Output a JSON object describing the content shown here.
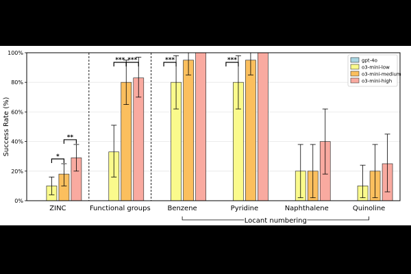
{
  "chart_data": {
    "type": "bar",
    "ylabel": "Success Rate (%)",
    "ylim": [
      0,
      100
    ],
    "yticks": [
      "0%",
      "20%",
      "40%",
      "60%",
      "80%",
      "100%"
    ],
    "grid": "y",
    "legend_position": "top-right",
    "categories": [
      "ZINC",
      "Functional groups",
      "Benzene",
      "Pyridine",
      "Naphthalene",
      "Quinoline"
    ],
    "series": [
      {
        "name": "gpt-4o",
        "color": "#a8d5e2",
        "values": [
          0,
          0,
          0,
          0,
          0,
          0
        ],
        "err_low": [
          0,
          0,
          0,
          0,
          0,
          0
        ],
        "err_high": [
          0,
          0,
          0,
          0,
          0,
          0
        ]
      },
      {
        "name": "o3-mini-low",
        "color": "#fafa8c",
        "values": [
          10,
          33,
          80,
          80,
          20,
          10
        ],
        "err_low": [
          4,
          16,
          62,
          62,
          2,
          2
        ],
        "err_high": [
          16,
          51,
          98,
          98,
          38,
          24
        ]
      },
      {
        "name": "o3-mini-medium",
        "color": "#fbbf5e",
        "values": [
          18,
          80,
          95,
          95,
          20,
          20
        ],
        "err_low": [
          10,
          65,
          85,
          85,
          2,
          2
        ],
        "err_high": [
          25,
          95,
          100,
          100,
          38,
          38
        ]
      },
      {
        "name": "o3-mini-high",
        "color": "#f9aaa0",
        "values": [
          29,
          83,
          100,
          100,
          40,
          25
        ],
        "err_low": [
          20,
          70,
          100,
          100,
          18,
          6
        ],
        "err_high": [
          38,
          97,
          100,
          100,
          62,
          45
        ]
      }
    ],
    "significance": [
      {
        "category": "ZINC",
        "from": "o3-mini-low",
        "to": "o3-mini-medium",
        "label": "*"
      },
      {
        "category": "ZINC",
        "from": "o3-mini-medium",
        "to": "o3-mini-high",
        "label": "**"
      },
      {
        "category": "Functional groups",
        "from": "o3-mini-low",
        "to": "o3-mini-medium",
        "label": "***"
      },
      {
        "category": "Functional groups",
        "from": "o3-mini-medium",
        "to": "o3-mini-high",
        "label": "***"
      },
      {
        "category": "Benzene",
        "from": "gpt-4o",
        "to": "o3-mini-low",
        "label": "***"
      },
      {
        "category": "Pyridine",
        "from": "gpt-4o",
        "to": "o3-mini-low",
        "label": "***"
      }
    ],
    "bracket_label": "Locant numbering",
    "bracket_span": [
      "Benzene",
      "Quinoline"
    ],
    "separators_after": [
      "ZINC",
      "Functional groups"
    ]
  }
}
